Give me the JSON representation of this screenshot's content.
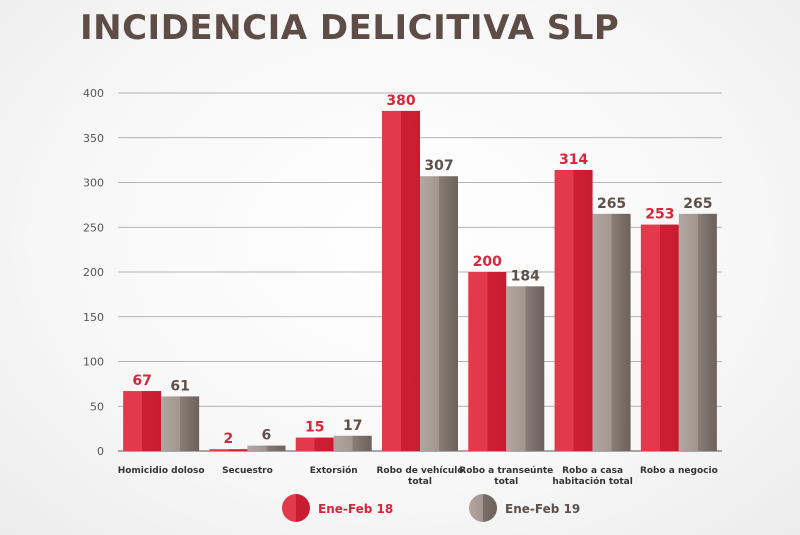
{
  "chart_data": {
    "type": "bar",
    "title": "INCIDENCIA DELICITIVA SLP",
    "xlabel": "",
    "ylabel": "",
    "ylim": [
      0,
      400
    ],
    "yticks": [
      0,
      50,
      100,
      150,
      200,
      250,
      300,
      350,
      400
    ],
    "grid": true,
    "legend_position": "bottom-center",
    "categories": [
      [
        "Homicidio doloso"
      ],
      [
        "Secuestro"
      ],
      [
        "Extorsión"
      ],
      [
        "Robo de vehículo",
        "total"
      ],
      [
        "Robo a transeúnte",
        "total"
      ],
      [
        "Robo a casa",
        "habitación total"
      ],
      [
        "Robo a negocio"
      ]
    ],
    "series": [
      {
        "name": "Ene-Feb 18",
        "color": "#d8263a",
        "values": [
          67,
          2,
          15,
          380,
          200,
          314,
          253
        ]
      },
      {
        "name": "Ene-Feb 19",
        "color": "#8f827c",
        "values": [
          61,
          6,
          17,
          307,
          184,
          265,
          265
        ]
      }
    ],
    "label_colors": [
      "#d8263a",
      "#5e504a"
    ]
  }
}
